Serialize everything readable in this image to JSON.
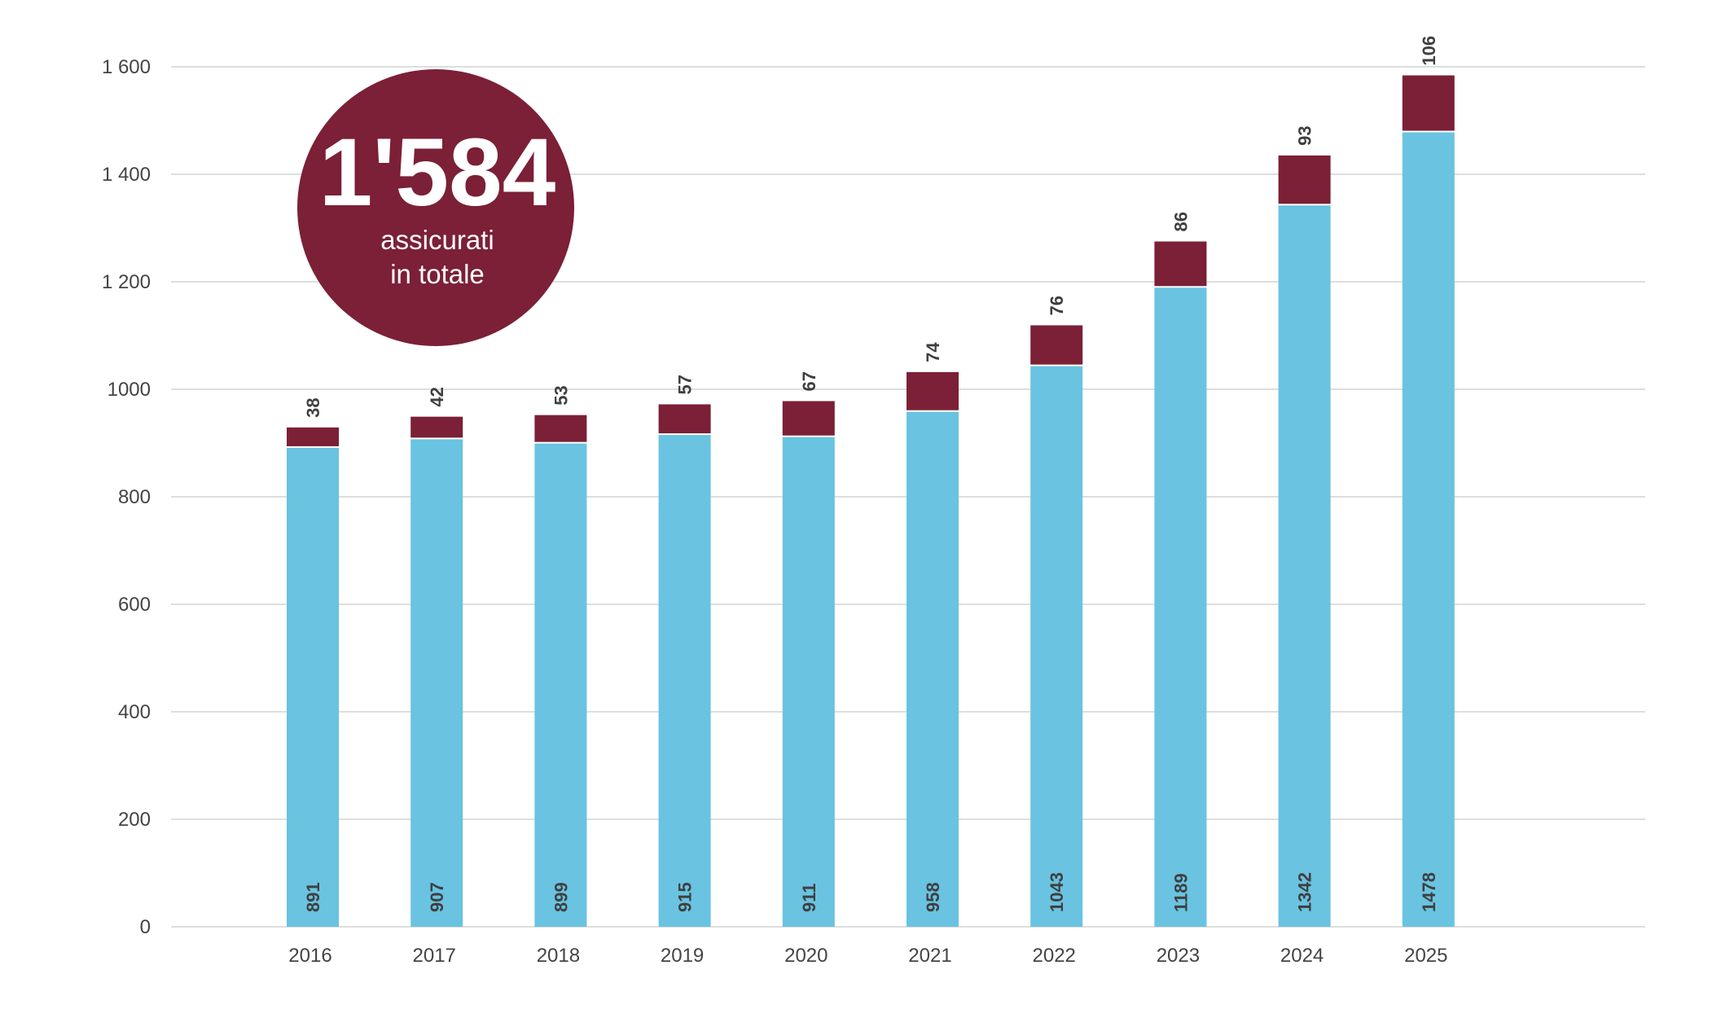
{
  "chart_data": {
    "type": "bar",
    "stacked": true,
    "categories": [
      "2016",
      "2017",
      "2018",
      "2019",
      "2020",
      "2021",
      "2022",
      "2023",
      "2024",
      "2025"
    ],
    "series": [
      {
        "color": "#69c3e1",
        "values": [
          891,
          907,
          899,
          915,
          911,
          958,
          1043,
          1189,
          1342,
          1478
        ]
      },
      {
        "color": "#7b2036",
        "values": [
          38,
          42,
          53,
          57,
          67,
          74,
          76,
          86,
          93,
          106
        ]
      }
    ],
    "y_ticks": [
      "0",
      "200",
      "400",
      "600",
      "800",
      "1000",
      "1 200",
      "1 400",
      "1 600"
    ],
    "ylim": [
      0,
      1600
    ],
    "grid": true,
    "legend": "none"
  },
  "badge": {
    "value": "1'584",
    "label_line1": "assicurati",
    "label_line2": "in totale",
    "color": "#7b2036"
  }
}
